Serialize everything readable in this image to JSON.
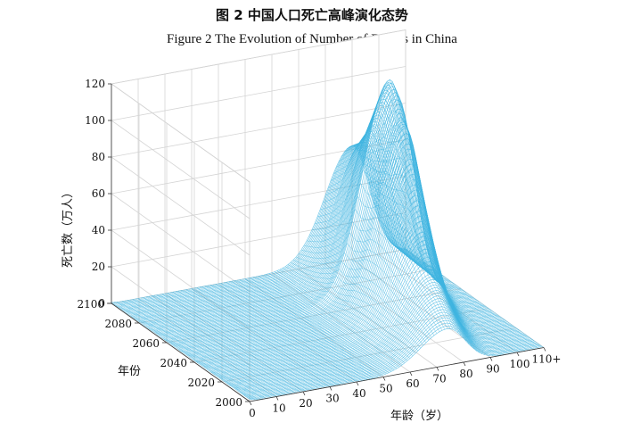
{
  "figure": {
    "title_cn": "图 2   中国人口死亡高峰演化态势",
    "title_en": "Figure 2    The Evolution of Number of Deaths in China"
  },
  "chart_data": {
    "type": "surface",
    "x_axis": {
      "label": "年龄（岁）",
      "ticks": [
        "0",
        "10",
        "20",
        "30",
        "40",
        "50",
        "60",
        "70",
        "80",
        "90",
        "100",
        "110+"
      ],
      "range": [
        0,
        110
      ]
    },
    "y_axis": {
      "label": "年份",
      "ticks": [
        "2000",
        "2020",
        "2040",
        "2060",
        "2080",
        "2100"
      ],
      "range": [
        2000,
        2100
      ]
    },
    "z_axis": {
      "label": "死亡数（万人）",
      "ticks": [
        "0",
        "20",
        "40",
        "60",
        "80",
        "100",
        "120"
      ],
      "range": [
        0,
        120
      ]
    },
    "grid": true,
    "surface_color": "#3fb4e0",
    "peak_series": [
      {
        "year": 2000,
        "peak_age": 74,
        "peak_deaths": 20
      },
      {
        "year": 2020,
        "peak_age": 78,
        "peak_deaths": 38
      },
      {
        "year": 2030,
        "peak_age": 80,
        "peak_deaths": 55
      },
      {
        "year": 2040,
        "peak_age": 82,
        "peak_deaths": 78
      },
      {
        "year": 2050,
        "peak_age": 84,
        "peak_deaths": 100
      },
      {
        "year": 2055,
        "peak_age": 85,
        "peak_deaths": 103
      },
      {
        "year": 2060,
        "peak_age": 86,
        "peak_deaths": 112
      },
      {
        "year": 2065,
        "peak_age": 86,
        "peak_deaths": 118
      },
      {
        "year": 2070,
        "peak_age": 87,
        "peak_deaths": 108
      },
      {
        "year": 2080,
        "peak_age": 88,
        "peak_deaths": 85
      },
      {
        "year": 2090,
        "peak_age": 89,
        "peak_deaths": 70
      },
      {
        "year": 2100,
        "peak_age": 90,
        "peak_deaths": 62
      }
    ]
  }
}
